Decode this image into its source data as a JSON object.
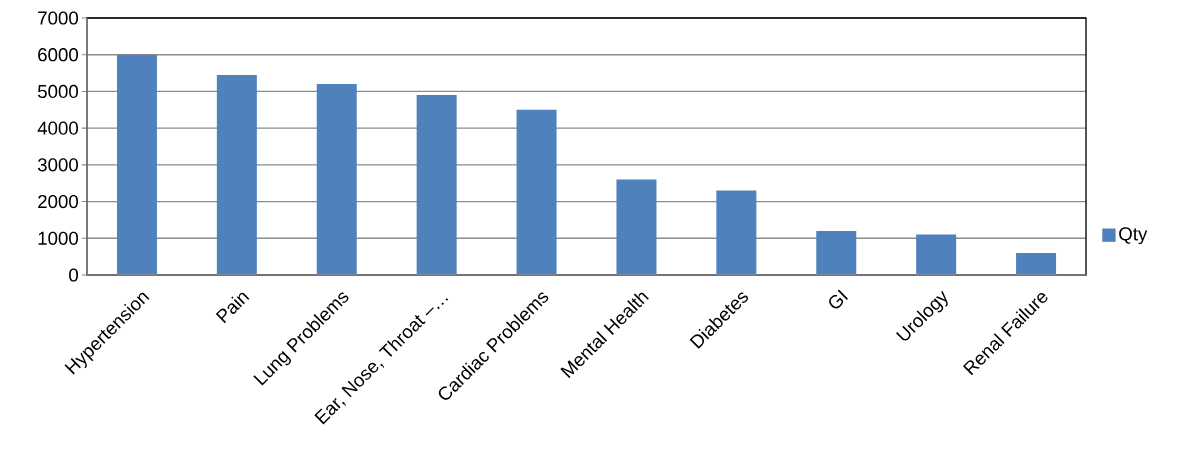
{
  "chart_data": {
    "type": "bar",
    "categories": [
      "Hypertension",
      "Pain",
      "Lung Problems",
      "Ear, Nose, Throat –…",
      "Cardiac Problems",
      "Mental Health",
      "Diabetes",
      "GI",
      "Urology",
      "Renal Failure"
    ],
    "series": [
      {
        "name": "Qty",
        "color": "#4f81bd",
        "values": [
          6000,
          5450,
          5200,
          4900,
          4500,
          2600,
          2300,
          1200,
          1100,
          600
        ]
      }
    ],
    "ylim": [
      0,
      7000
    ],
    "yticks": [
      0,
      1000,
      2000,
      3000,
      4000,
      5000,
      6000,
      7000
    ],
    "grid": "y",
    "legend": "right"
  }
}
